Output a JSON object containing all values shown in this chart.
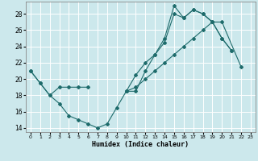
{
  "xlabel": "Humidex (Indice chaleur)",
  "background_color": "#cce8ec",
  "grid_color": "#ffffff",
  "line_color": "#1e6b6b",
  "xlim": [
    -0.5,
    23.5
  ],
  "ylim": [
    13.5,
    29.5
  ],
  "xticks": [
    0,
    1,
    2,
    3,
    4,
    5,
    6,
    7,
    8,
    9,
    10,
    11,
    12,
    13,
    14,
    15,
    16,
    17,
    18,
    19,
    20,
    21,
    22,
    23
  ],
  "yticks": [
    14,
    16,
    18,
    20,
    22,
    24,
    26,
    28
  ],
  "line1_x": [
    0,
    1,
    2,
    3,
    4,
    5,
    6,
    7,
    8,
    9,
    10,
    11,
    12,
    13,
    14,
    15,
    16,
    17,
    18,
    19,
    20,
    21
  ],
  "line1_y": [
    21,
    19.5,
    18,
    17,
    15.5,
    15,
    14.5,
    14,
    14.5,
    16.5,
    18.5,
    18.5,
    21,
    23,
    25,
    29,
    27.5,
    28.5,
    28,
    27,
    25,
    23.5
  ],
  "line2_segments": [
    {
      "x": [
        0,
        1,
        2,
        3,
        4,
        5,
        6
      ],
      "y": [
        21,
        19.5,
        18,
        19,
        19,
        19,
        19
      ]
    },
    {
      "x": [
        10,
        11,
        12,
        13,
        14,
        15,
        16,
        17,
        18,
        19,
        20,
        21
      ],
      "y": [
        18.5,
        20.5,
        22,
        23,
        24.5,
        28,
        27.5,
        28.5,
        28,
        27,
        25,
        23.5
      ]
    }
  ],
  "line3_x": [
    10,
    11,
    12,
    13,
    14,
    15,
    16,
    17,
    18,
    19,
    20,
    22
  ],
  "line3_y": [
    18.5,
    19,
    20,
    21,
    22,
    23,
    24,
    25,
    26,
    27,
    27,
    21.5
  ]
}
